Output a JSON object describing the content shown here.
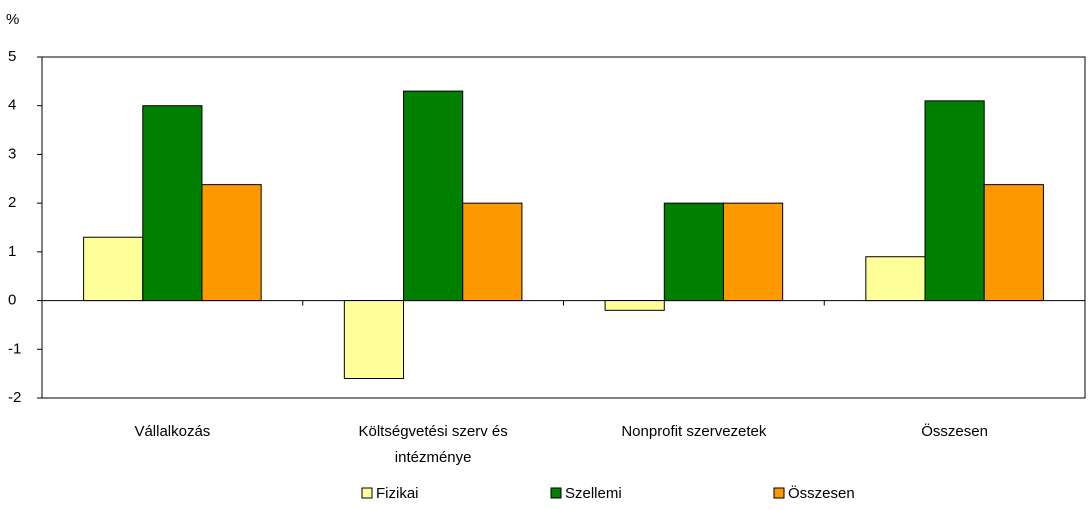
{
  "chart_data": {
    "type": "bar",
    "y_label": "%",
    "categories": [
      "Vállalkozás",
      "Költségvetési szerv és intézménye",
      "Nonprofit szervezetek",
      "Összesen"
    ],
    "series": [
      {
        "name": "Fizikai",
        "color": "#ffff99",
        "values": [
          1.3,
          -1.6,
          -0.2,
          0.9
        ]
      },
      {
        "name": "Szellemi",
        "color": "#008000",
        "values": [
          4.0,
          4.3,
          2.0,
          4.1
        ]
      },
      {
        "name": "Összesen",
        "color": "#ff9900",
        "values": [
          2.38,
          2.0,
          2.0,
          2.38
        ]
      }
    ],
    "ylim": [
      -2,
      5
    ],
    "yticks": [
      -2,
      -1,
      0,
      1,
      2,
      3,
      4,
      5
    ],
    "grid": false,
    "legend": "bottom"
  }
}
